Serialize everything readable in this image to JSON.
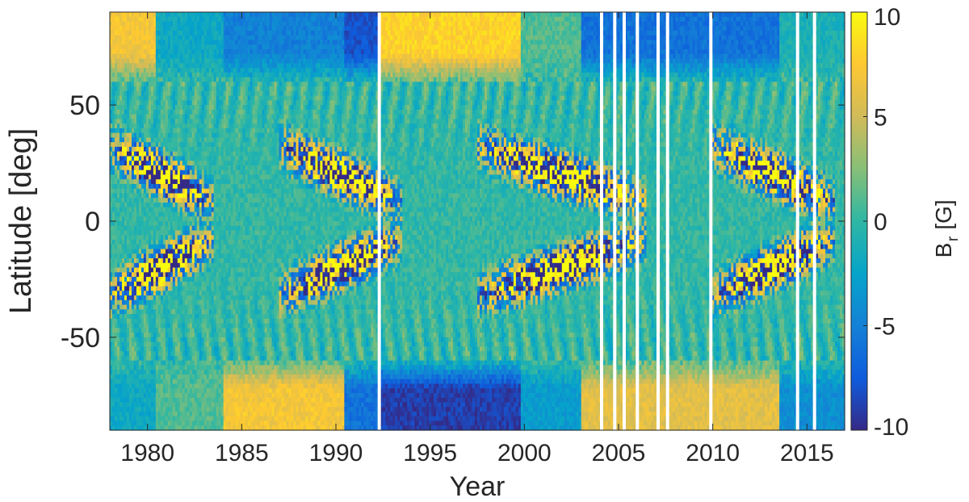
{
  "chart_data": {
    "type": "heatmap",
    "title": "",
    "xlabel": "Year",
    "ylabel": "Latitude [deg]",
    "colorbar_label_main": "B",
    "colorbar_label_sub": "r",
    "colorbar_label_unit": "[G]",
    "xlim": [
      1978,
      2017
    ],
    "ylim": [
      -90,
      90
    ],
    "clim": [
      -10,
      10
    ],
    "x_ticks": [
      1980,
      1985,
      1990,
      1995,
      2000,
      2005,
      2010,
      2015
    ],
    "x_tick_labels": [
      "1980",
      "1985",
      "1990",
      "1995",
      "2000",
      "2005",
      "2010",
      "2015"
    ],
    "y_ticks": [
      50,
      0,
      -50
    ],
    "y_tick_labels": [
      "50",
      "0",
      "-50"
    ],
    "colorbar_ticks": [
      10,
      5,
      0,
      -5,
      -10
    ],
    "colorbar_tick_labels": [
      "10",
      "5",
      "0",
      "-5",
      "-10"
    ],
    "colormap": "parula",
    "colormap_colors": [
      "#352a87",
      "#0f5cdd",
      "#1481d6",
      "#06a4ca",
      "#2eb7a4",
      "#87bf77",
      "#d1bb59",
      "#fec832",
      "#f9fb0e"
    ],
    "data_gap_years": [
      1992.3,
      2004.1,
      2004.8,
      2005.3,
      2006.0,
      2007.1,
      2007.6,
      2009.9,
      2014.5,
      2015.4
    ],
    "polar_field_cycles": [
      {
        "start": 1978.0,
        "end": 1980.5,
        "north": 7,
        "south": -2
      },
      {
        "start": 1980.5,
        "end": 1984.0,
        "north": -2,
        "south": 1
      },
      {
        "start": 1984.0,
        "end": 1990.5,
        "north": -5,
        "south": 7
      },
      {
        "start": 1990.5,
        "end": 1992.3,
        "north": -8,
        "south": -6
      },
      {
        "start": 1992.3,
        "end": 1999.8,
        "north": 8,
        "south": -9
      },
      {
        "start": 1999.8,
        "end": 2003.0,
        "north": 1,
        "south": -3
      },
      {
        "start": 2003.0,
        "end": 2013.5,
        "north": -6,
        "south": 6
      },
      {
        "start": 2013.5,
        "end": 2017.0,
        "north": -1,
        "south": -4
      }
    ],
    "activity_belts": [
      {
        "start": 1978.0,
        "end": 1983.5,
        "center_year": 1980.5
      },
      {
        "start": 1987.0,
        "end": 1993.5,
        "center_year": 1990.0
      },
      {
        "start": 1997.5,
        "end": 2006.5,
        "center_year": 2001.5
      },
      {
        "start": 2010.0,
        "end": 2016.5,
        "center_year": 2014.0
      }
    ]
  }
}
